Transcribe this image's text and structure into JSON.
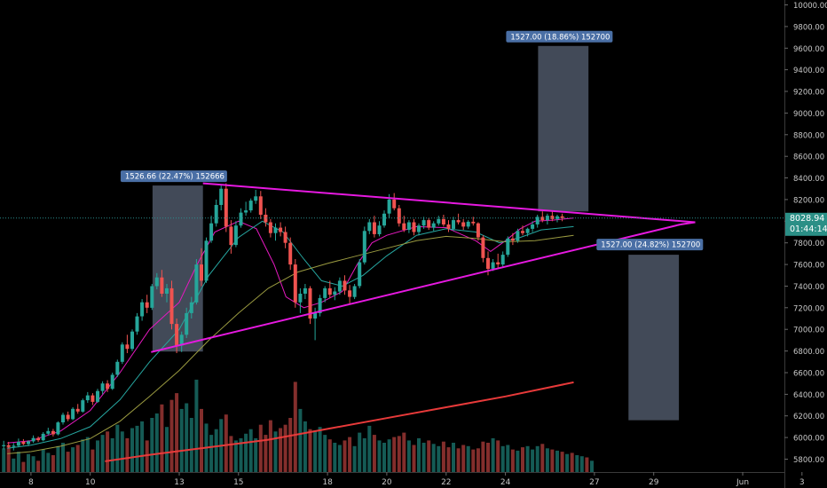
{
  "chart_data": {
    "type": "candlestick",
    "title": "",
    "xlabel": "",
    "ylabel": "",
    "ylim": [
      5700,
      10050
    ],
    "grid": false,
    "y_ticks": [
      5800,
      6000,
      6200,
      6400,
      6600,
      6800,
      7000,
      7200,
      7400,
      7600,
      7800,
      8000,
      8200,
      8400,
      8600,
      8800,
      9000,
      9200,
      9400,
      9600,
      9800,
      10000
    ],
    "y_tick_labels": [
      "5800.00",
      "6000.00",
      "6200.00",
      "6400.00",
      "6600.00",
      "6800.00",
      "7000.00",
      "7200.00",
      "7400.00",
      "7600.00",
      "7800.00",
      "8000.00",
      "8200.00",
      "8400.00",
      "8600.00",
      "8800.00",
      "9000.00",
      "9200.00",
      "9400.00",
      "9600.00",
      "9800.00",
      "10000.00"
    ],
    "x_ticks": [
      {
        "label": "8",
        "day": 8
      },
      {
        "label": "10",
        "day": 10
      },
      {
        "label": "13",
        "day": 13
      },
      {
        "label": "15",
        "day": 15
      },
      {
        "label": "18",
        "day": 18
      },
      {
        "label": "20",
        "day": 20
      },
      {
        "label": "22",
        "day": 22
      },
      {
        "label": "24",
        "day": 24
      },
      {
        "label": "27",
        "day": 27
      },
      {
        "label": "29",
        "day": 29
      },
      {
        "label": "Jun",
        "day": 32
      },
      {
        "label": "3",
        "day": 34
      }
    ],
    "current_price": {
      "value": 8028.94,
      "label": "8028.94",
      "countdown": "01:44:14"
    },
    "measurements": [
      {
        "label": "1526.66 (22.47%) 152666",
        "from_day": 12.1,
        "to_day": 13.8,
        "low": 6795,
        "high": 8330
      },
      {
        "label": "1527.00 (18.86%) 152700",
        "from_day": 25.1,
        "to_day": 26.8,
        "low": 8090,
        "high": 9620
      },
      {
        "label": "1527.00 (24.82%) 152700",
        "from_day": 28.15,
        "to_day": 29.85,
        "low": 6160,
        "high": 7690
      }
    ],
    "trendlines": [
      {
        "name": "upper",
        "from": [
          13.8,
          8350
        ],
        "to": [
          30.4,
          7990
        ]
      },
      {
        "name": "lower",
        "from": [
          12.05,
          6790
        ],
        "to": [
          29.9,
          7970
        ]
      }
    ],
    "bars_per_day": 6,
    "ohlc": [
      [
        5920,
        5970,
        5890,
        5930
      ],
      [
        5930,
        5960,
        5900,
        5915
      ],
      [
        5915,
        5950,
        5880,
        5925
      ],
      [
        5925,
        5990,
        5910,
        5960
      ],
      [
        5960,
        5985,
        5930,
        5940
      ],
      [
        5940,
        5975,
        5920,
        5965
      ],
      [
        5965,
        6020,
        5950,
        5995
      ],
      [
        5995,
        6010,
        5960,
        5975
      ],
      [
        5975,
        6050,
        5965,
        6035
      ],
      [
        6035,
        6090,
        6020,
        6060
      ],
      [
        6060,
        6080,
        6010,
        6030
      ],
      [
        6030,
        6150,
        6020,
        6140
      ],
      [
        6140,
        6230,
        6120,
        6210
      ],
      [
        6210,
        6240,
        6150,
        6170
      ],
      [
        6170,
        6280,
        6160,
        6265
      ],
      [
        6265,
        6310,
        6220,
        6240
      ],
      [
        6240,
        6360,
        6230,
        6345
      ],
      [
        6345,
        6420,
        6320,
        6390
      ],
      [
        6390,
        6410,
        6300,
        6330
      ],
      [
        6330,
        6450,
        6320,
        6430
      ],
      [
        6430,
        6520,
        6400,
        6500
      ],
      [
        6500,
        6530,
        6420,
        6450
      ],
      [
        6450,
        6600,
        6440,
        6580
      ],
      [
        6580,
        6720,
        6560,
        6700
      ],
      [
        6700,
        6880,
        6680,
        6860
      ],
      [
        6860,
        6950,
        6780,
        6820
      ],
      [
        6820,
        7000,
        6800,
        6980
      ],
      [
        6980,
        7150,
        6950,
        7120
      ],
      [
        7120,
        7280,
        7080,
        7250
      ],
      [
        7250,
        7320,
        7150,
        7200
      ],
      [
        7200,
        7420,
        7180,
        7400
      ],
      [
        7400,
        7520,
        7370,
        7480
      ],
      [
        7480,
        7550,
        7300,
        7330
      ],
      [
        7330,
        7420,
        7250,
        7380
      ],
      [
        7380,
        7450,
        7000,
        7050
      ],
      [
        7050,
        7100,
        6780,
        6850
      ],
      [
        6850,
        6980,
        6790,
        6950
      ],
      [
        6950,
        7200,
        6920,
        7150
      ],
      [
        7150,
        7300,
        7100,
        7250
      ],
      [
        7250,
        7650,
        7230,
        7600
      ],
      [
        7600,
        7750,
        7400,
        7450
      ],
      [
        7450,
        7850,
        7430,
        7820
      ],
      [
        7820,
        8050,
        7800,
        7980
      ],
      [
        7980,
        8200,
        7950,
        8150
      ],
      [
        8150,
        8330,
        8100,
        8300
      ],
      [
        8300,
        8350,
        7900,
        7950
      ],
      [
        7950,
        8010,
        7700,
        7780
      ],
      [
        7780,
        8000,
        7760,
        7960
      ],
      [
        7960,
        8120,
        7940,
        8080
      ],
      [
        8080,
        8180,
        8050,
        8100
      ],
      [
        8100,
        8210,
        8080,
        8190
      ],
      [
        8190,
        8290,
        8160,
        8230
      ],
      [
        8230,
        8280,
        8020,
        8060
      ],
      [
        8060,
        8120,
        7950,
        7990
      ],
      [
        7990,
        8020,
        7850,
        7890
      ],
      [
        7890,
        7980,
        7820,
        7940
      ],
      [
        7940,
        7990,
        7860,
        7900
      ],
      [
        7900,
        7950,
        7750,
        7800
      ],
      [
        7800,
        7850,
        7550,
        7600
      ],
      [
        7600,
        7650,
        7200,
        7250
      ],
      [
        7250,
        7380,
        7150,
        7330
      ],
      [
        7330,
        7420,
        7280,
        7380
      ],
      [
        7380,
        7400,
        7050,
        7100
      ],
      [
        7100,
        7200,
        6900,
        7150
      ],
      [
        7150,
        7320,
        7120,
        7290
      ],
      [
        7290,
        7400,
        7250,
        7380
      ],
      [
        7380,
        7450,
        7290,
        7320
      ],
      [
        7320,
        7390,
        7270,
        7350
      ],
      [
        7350,
        7480,
        7320,
        7450
      ],
      [
        7450,
        7500,
        7320,
        7360
      ],
      [
        7360,
        7410,
        7240,
        7300
      ],
      [
        7300,
        7420,
        7280,
        7400
      ],
      [
        7400,
        7650,
        7380,
        7620
      ],
      [
        7620,
        7950,
        7600,
        7910
      ],
      [
        7910,
        8020,
        7880,
        7990
      ],
      [
        7990,
        8050,
        7850,
        7880
      ],
      [
        7880,
        8000,
        7860,
        7960
      ],
      [
        7960,
        8100,
        7940,
        8070
      ],
      [
        8070,
        8250,
        8030,
        8200
      ],
      [
        8200,
        8260,
        8100,
        8120
      ],
      [
        8120,
        8150,
        7950,
        7980
      ],
      [
        7980,
        8050,
        7900,
        7920
      ],
      [
        7920,
        8010,
        7890,
        7990
      ],
      [
        7990,
        8020,
        7870,
        7900
      ],
      [
        7900,
        7980,
        7870,
        7960
      ],
      [
        7960,
        8040,
        7930,
        8010
      ],
      [
        8010,
        8030,
        7920,
        7940
      ],
      [
        7940,
        8000,
        7910,
        7980
      ],
      [
        7980,
        8050,
        7960,
        8020
      ],
      [
        8020,
        8060,
        7950,
        7970
      ],
      [
        7970,
        8010,
        7900,
        7930
      ],
      [
        7930,
        8040,
        7910,
        8010
      ],
      [
        8010,
        8070,
        7970,
        7990
      ],
      [
        7990,
        8020,
        7920,
        7950
      ],
      [
        7950,
        8010,
        7930,
        7995
      ],
      [
        7995,
        8040,
        7960,
        7980
      ],
      [
        7980,
        7990,
        7820,
        7850
      ],
      [
        7850,
        7870,
        7620,
        7660
      ],
      [
        7660,
        7720,
        7500,
        7560
      ],
      [
        7560,
        7650,
        7540,
        7620
      ],
      [
        7620,
        7700,
        7560,
        7600
      ],
      [
        7600,
        7720,
        7580,
        7690
      ],
      [
        7690,
        7860,
        7670,
        7840
      ],
      [
        7840,
        7890,
        7780,
        7820
      ],
      [
        7820,
        7930,
        7800,
        7910
      ],
      [
        7910,
        7960,
        7870,
        7890
      ],
      [
        7890,
        7940,
        7860,
        7930
      ],
      [
        7930,
        8000,
        7900,
        7970
      ],
      [
        7970,
        8060,
        7940,
        8040
      ],
      [
        8040,
        8090,
        7990,
        8010
      ],
      [
        8010,
        8070,
        7970,
        8050
      ],
      [
        8050,
        8100,
        8000,
        8020
      ],
      [
        8020,
        8060,
        7990,
        8045
      ],
      [
        8045,
        8070,
        8000,
        8029
      ]
    ],
    "volume_scale": {
      "min": 0,
      "max": 1000
    },
    "volumes": [
      210,
      230,
      120,
      180,
      90,
      160,
      140,
      100,
      200,
      170,
      150,
      230,
      260,
      180,
      220,
      240,
      290,
      310,
      200,
      280,
      330,
      360,
      300,
      420,
      360,
      300,
      390,
      410,
      450,
      280,
      480,
      520,
      600,
      400,
      640,
      700,
      560,
      610,
      480,
      820,
      560,
      430,
      330,
      380,
      470,
      510,
      320,
      280,
      300,
      340,
      380,
      300,
      420,
      330,
      460,
      360,
      390,
      420,
      480,
      800,
      560,
      450,
      380,
      370,
      400,
      330,
      290,
      260,
      240,
      280,
      310,
      230,
      350,
      300,
      410,
      330,
      280,
      260,
      290,
      310,
      320,
      350,
      280,
      240,
      300,
      260,
      280,
      250,
      230,
      270,
      220,
      260,
      210,
      240,
      230,
      200,
      210,
      270,
      260,
      300,
      280,
      230,
      240,
      200,
      190,
      220,
      230,
      200,
      230,
      250,
      210,
      200,
      190,
      180,
      160,
      170,
      150,
      140,
      130,
      100
    ],
    "ma_lines": [
      {
        "name": "ma-fast",
        "color": "#e619c0",
        "points": [
          [
            7.2,
            5950
          ],
          [
            8,
            5970
          ],
          [
            9,
            6060
          ],
          [
            10,
            6250
          ],
          [
            11,
            6600
          ],
          [
            12,
            7000
          ],
          [
            13,
            7250
          ],
          [
            13.6,
            7600
          ],
          [
            14.2,
            7900
          ],
          [
            15,
            8000
          ],
          [
            15.6,
            7930
          ],
          [
            16.2,
            7600
          ],
          [
            16.6,
            7300
          ],
          [
            17.2,
            7200
          ],
          [
            17.8,
            7250
          ],
          [
            18.5,
            7350
          ],
          [
            19,
            7600
          ],
          [
            19.5,
            7800
          ],
          [
            20,
            7870
          ],
          [
            21,
            7950
          ],
          [
            22,
            7940
          ],
          [
            23,
            7820
          ],
          [
            23.5,
            7720
          ],
          [
            24,
            7820
          ],
          [
            24.5,
            7930
          ],
          [
            25,
            8000
          ],
          [
            25.6,
            8010
          ],
          [
            26.3,
            8030
          ]
        ]
      },
      {
        "name": "ma-mid",
        "color": "#26a6a0",
        "points": [
          [
            7.2,
            5900
          ],
          [
            8,
            5930
          ],
          [
            9,
            5990
          ],
          [
            10,
            6100
          ],
          [
            11,
            6350
          ],
          [
            12,
            6700
          ],
          [
            13,
            7000
          ],
          [
            14,
            7500
          ],
          [
            15,
            7850
          ],
          [
            15.8,
            8000
          ],
          [
            16.5,
            7900
          ],
          [
            17.2,
            7650
          ],
          [
            17.8,
            7450
          ],
          [
            18.5,
            7400
          ],
          [
            19.2,
            7500
          ],
          [
            20,
            7680
          ],
          [
            21,
            7870
          ],
          [
            22,
            7930
          ],
          [
            23,
            7900
          ],
          [
            23.8,
            7800
          ],
          [
            24.5,
            7850
          ],
          [
            25.2,
            7920
          ],
          [
            26.3,
            7950
          ]
        ]
      },
      {
        "name": "ma-slow",
        "color": "#9a9a40",
        "points": [
          [
            7.2,
            5850
          ],
          [
            8,
            5870
          ],
          [
            9,
            5920
          ],
          [
            10,
            5990
          ],
          [
            11,
            6150
          ],
          [
            12,
            6380
          ],
          [
            13,
            6620
          ],
          [
            14,
            6900
          ],
          [
            15,
            7150
          ],
          [
            16,
            7380
          ],
          [
            17,
            7530
          ],
          [
            18,
            7610
          ],
          [
            19,
            7680
          ],
          [
            20,
            7750
          ],
          [
            21,
            7820
          ],
          [
            22,
            7860
          ],
          [
            23,
            7840
          ],
          [
            24,
            7810
          ],
          [
            25,
            7820
          ],
          [
            26.3,
            7870
          ]
        ]
      },
      {
        "name": "ma-volume-trend",
        "color": "#e83a3a",
        "points": [
          [
            10.5,
            5780
          ],
          [
            12,
            5840
          ],
          [
            14,
            5910
          ],
          [
            16,
            5980
          ],
          [
            18,
            6080
          ],
          [
            20,
            6180
          ],
          [
            22,
            6280
          ],
          [
            24,
            6380
          ],
          [
            26.3,
            6510
          ]
        ]
      }
    ]
  }
}
